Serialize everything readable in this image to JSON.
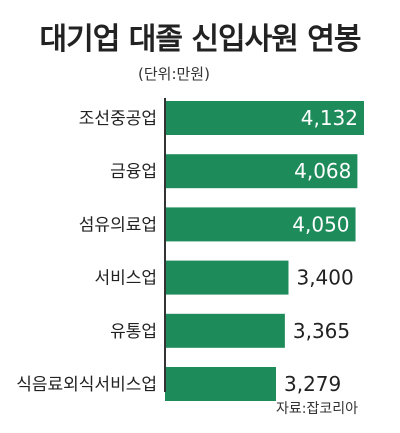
{
  "title": "대기업 대졸 신입사원 연봉",
  "unit_note": "(단위:만원)",
  "source": "자료:잡코리아",
  "colors": {
    "bar": "#1e8b5a",
    "axis": "#333333",
    "text": "#222222"
  },
  "chart_data": {
    "type": "bar",
    "orientation": "horizontal",
    "title": "대기업 대졸 신입사원 연봉",
    "unit": "만원",
    "categories": [
      "조선중공업",
      "금융업",
      "섬유의료업",
      "서비스업",
      "유통업",
      "식음료외식서비스업"
    ],
    "values": [
      4132,
      4068,
      4050,
      3400,
      3365,
      3279
    ],
    "value_labels": [
      "4,132",
      "4,068",
      "4,050",
      "3,400",
      "3,365",
      "3,279"
    ],
    "grid": false,
    "legend": "none"
  }
}
